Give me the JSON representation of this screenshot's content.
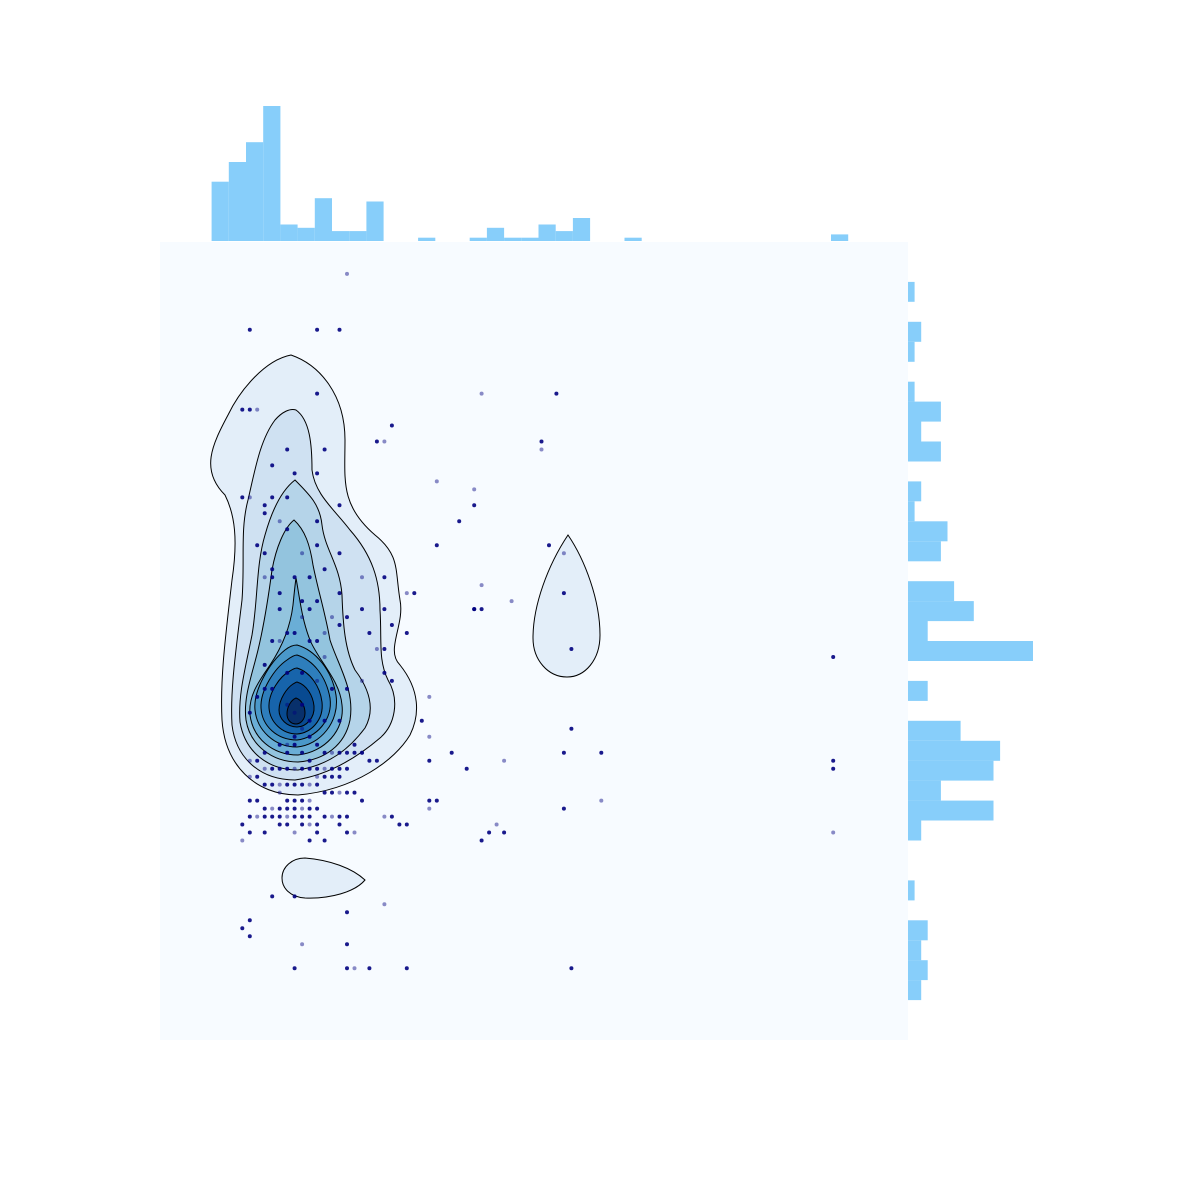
{
  "chart_data": {
    "type": "scatter",
    "subtype": "joint-kde-with-marginal-histograms",
    "title": "",
    "xlabel": "",
    "ylabel": "",
    "axes_visible": false,
    "grid": false,
    "colors": {
      "background": "#f7fbff",
      "marginal_bars": "#87cefa",
      "points": "#000080",
      "contour_line": "#000000",
      "kde_levels": [
        "#e3eef9",
        "#cfe1f2",
        "#b5d4e9",
        "#93c4de",
        "#6aaed6",
        "#4a98c9",
        "#2e7ebc",
        "#1764ab",
        "#084a91",
        "#08306b"
      ]
    },
    "xlim": [
      0,
      100
    ],
    "ylim": [
      0,
      100
    ],
    "points": [
      [
        25,
        96
      ],
      [
        12,
        89
      ],
      [
        21,
        89
      ],
      [
        24,
        89
      ],
      [
        43,
        81
      ],
      [
        53,
        81
      ],
      [
        11,
        79
      ],
      [
        12,
        79
      ],
      [
        13,
        79
      ],
      [
        21,
        81
      ],
      [
        31,
        77
      ],
      [
        29,
        75
      ],
      [
        30,
        75
      ],
      [
        17,
        74
      ],
      [
        22,
        74
      ],
      [
        51,
        75
      ],
      [
        51,
        74
      ],
      [
        15,
        72
      ],
      [
        18,
        71
      ],
      [
        21,
        71
      ],
      [
        37,
        70
      ],
      [
        15,
        68
      ],
      [
        17,
        68
      ],
      [
        11,
        68
      ],
      [
        12,
        68
      ],
      [
        14,
        67
      ],
      [
        14,
        66
      ],
      [
        24,
        67
      ],
      [
        42,
        69
      ],
      [
        42,
        67
      ],
      [
        40,
        65
      ],
      [
        21,
        65
      ],
      [
        16,
        65
      ],
      [
        17,
        64
      ],
      [
        21,
        62
      ],
      [
        37,
        62
      ],
      [
        54,
        61
      ],
      [
        52,
        62
      ],
      [
        13,
        62
      ],
      [
        14,
        61
      ],
      [
        19,
        61
      ],
      [
        24,
        61
      ],
      [
        22,
        59
      ],
      [
        15,
        59
      ],
      [
        14,
        58
      ],
      [
        15,
        58
      ],
      [
        18,
        58
      ],
      [
        20,
        58
      ],
      [
        27,
        58
      ],
      [
        30,
        58
      ],
      [
        16,
        56
      ],
      [
        24,
        56
      ],
      [
        33,
        56
      ],
      [
        34,
        56
      ],
      [
        19,
        55
      ],
      [
        21,
        55
      ],
      [
        43,
        57
      ],
      [
        54,
        56
      ],
      [
        16,
        54
      ],
      [
        20,
        54
      ],
      [
        23,
        53
      ],
      [
        27,
        54
      ],
      [
        30,
        54
      ],
      [
        42,
        54
      ],
      [
        47,
        55
      ],
      [
        31,
        52
      ],
      [
        24,
        52
      ],
      [
        25,
        53
      ],
      [
        19,
        53
      ],
      [
        17,
        51
      ],
      [
        18,
        51
      ],
      [
        15,
        50
      ],
      [
        16,
        50
      ],
      [
        20,
        50
      ],
      [
        21,
        50
      ],
      [
        28,
        51
      ],
      [
        22,
        51
      ],
      [
        33,
        51
      ],
      [
        42,
        54
      ],
      [
        43,
        54
      ],
      [
        29,
        49
      ],
      [
        30,
        49
      ],
      [
        55,
        49
      ],
      [
        90,
        48
      ],
      [
        22,
        48
      ],
      [
        14,
        47
      ],
      [
        17,
        46
      ],
      [
        19,
        46
      ],
      [
        21,
        45
      ],
      [
        14,
        44
      ],
      [
        15,
        44
      ],
      [
        13,
        43
      ],
      [
        17,
        42
      ],
      [
        19,
        42
      ],
      [
        23,
        44
      ],
      [
        25,
        44
      ],
      [
        27,
        45
      ],
      [
        30,
        46
      ],
      [
        31,
        45
      ],
      [
        12,
        41
      ],
      [
        18,
        41
      ],
      [
        20,
        40
      ],
      [
        22,
        40
      ],
      [
        24,
        40
      ],
      [
        36,
        43
      ],
      [
        26,
        37
      ],
      [
        27,
        36
      ],
      [
        18,
        38
      ],
      [
        19,
        39
      ],
      [
        20,
        38
      ],
      [
        21,
        37
      ],
      [
        22,
        36
      ],
      [
        23,
        36
      ],
      [
        24,
        36
      ],
      [
        25,
        36
      ],
      [
        26,
        36
      ],
      [
        27,
        36
      ],
      [
        28,
        35
      ],
      [
        29,
        35
      ],
      [
        17,
        36
      ],
      [
        14,
        34
      ],
      [
        15,
        34
      ],
      [
        16,
        34
      ],
      [
        17,
        34
      ],
      [
        18,
        34
      ],
      [
        19,
        34
      ],
      [
        20,
        34
      ],
      [
        21,
        34
      ],
      [
        22,
        34
      ],
      [
        23,
        34
      ],
      [
        24,
        34
      ],
      [
        25,
        34
      ],
      [
        12,
        35
      ],
      [
        13,
        35
      ],
      [
        14,
        36
      ],
      [
        16,
        37
      ],
      [
        17,
        37
      ],
      [
        18,
        37
      ],
      [
        19,
        36
      ],
      [
        20,
        35
      ],
      [
        21,
        33
      ],
      [
        22,
        33
      ],
      [
        23,
        33
      ],
      [
        24,
        33
      ],
      [
        12,
        33
      ],
      [
        13,
        33
      ],
      [
        14,
        32
      ],
      [
        15,
        32
      ],
      [
        16,
        32
      ],
      [
        17,
        32
      ],
      [
        18,
        32
      ],
      [
        19,
        32
      ],
      [
        20,
        32
      ],
      [
        21,
        32
      ],
      [
        22,
        31
      ],
      [
        23,
        31
      ],
      [
        24,
        31
      ],
      [
        25,
        31
      ],
      [
        26,
        31
      ],
      [
        27,
        30
      ],
      [
        16,
        31
      ],
      [
        17,
        30
      ],
      [
        18,
        30
      ],
      [
        19,
        30
      ],
      [
        20,
        30
      ],
      [
        12,
        30
      ],
      [
        13,
        30
      ],
      [
        14,
        29
      ],
      [
        15,
        29
      ],
      [
        16,
        29
      ],
      [
        17,
        29
      ],
      [
        18,
        29
      ],
      [
        19,
        29
      ],
      [
        20,
        29
      ],
      [
        21,
        29
      ],
      [
        22,
        28
      ],
      [
        23,
        28
      ],
      [
        24,
        28
      ],
      [
        25,
        28
      ],
      [
        12,
        28
      ],
      [
        13,
        28
      ],
      [
        16,
        27
      ],
      [
        17,
        27
      ],
      [
        19,
        27
      ],
      [
        20,
        27
      ],
      [
        21,
        27
      ],
      [
        24,
        27
      ],
      [
        25,
        26
      ],
      [
        26,
        26
      ],
      [
        11,
        27
      ],
      [
        12,
        26
      ],
      [
        14,
        26
      ],
      [
        18,
        26
      ],
      [
        20,
        25
      ],
      [
        21,
        26
      ],
      [
        22,
        25
      ],
      [
        11,
        25
      ],
      [
        14,
        28
      ],
      [
        15,
        28
      ],
      [
        16,
        28
      ],
      [
        17,
        28
      ],
      [
        18,
        28
      ],
      [
        19,
        28
      ],
      [
        20,
        28
      ],
      [
        30,
        28
      ],
      [
        31,
        28
      ],
      [
        32,
        27
      ],
      [
        33,
        27
      ],
      [
        36,
        29
      ],
      [
        36,
        30
      ],
      [
        37,
        30
      ],
      [
        36,
        35
      ],
      [
        36,
        38
      ],
      [
        35,
        40
      ],
      [
        39,
        36
      ],
      [
        41,
        34
      ],
      [
        46,
        35
      ],
      [
        54,
        36
      ],
      [
        55,
        39
      ],
      [
        54,
        29
      ],
      [
        59,
        30
      ],
      [
        59,
        36
      ],
      [
        90,
        34
      ],
      [
        90,
        35
      ],
      [
        45,
        27
      ],
      [
        43,
        25
      ],
      [
        44,
        26
      ],
      [
        46,
        26
      ],
      [
        90,
        26
      ],
      [
        15,
        18
      ],
      [
        18,
        18
      ],
      [
        25,
        16
      ],
      [
        30,
        17
      ],
      [
        11,
        14
      ],
      [
        12,
        15
      ],
      [
        12,
        13
      ],
      [
        19,
        12
      ],
      [
        25,
        12
      ],
      [
        18,
        9
      ],
      [
        25,
        9
      ],
      [
        26,
        9
      ],
      [
        28,
        9
      ],
      [
        33,
        9
      ],
      [
        55,
        9
      ]
    ],
    "marginal_x": {
      "bins": [
        0,
        2.3,
        4.6,
        6.9,
        9.2,
        11.5,
        13.8,
        16.1,
        18.4,
        20.7,
        23.0,
        25.3,
        27.6,
        29.9,
        32.2,
        34.5,
        36.8,
        39.1,
        41.4,
        43.7,
        46.0,
        48.3,
        50.6,
        52.9,
        55.2,
        57.5,
        59.8,
        62.1,
        64.4,
        66.7,
        69.0,
        71.3,
        73.6,
        75.9,
        78.2,
        80.5,
        82.8,
        85.1,
        87.4,
        89.7
      ],
      "counts": [
        0,
        0,
        0,
        18,
        24,
        30,
        41,
        5,
        4,
        13,
        3,
        3,
        12,
        0,
        0,
        1,
        0,
        0,
        1,
        4,
        1,
        1,
        5,
        3,
        7,
        0,
        0,
        1,
        0,
        0,
        0,
        0,
        0,
        0,
        0,
        0,
        0,
        0,
        0,
        2
      ]
    },
    "marginal_y": {
      "bins": [
        100,
        97.5,
        95,
        92.5,
        90,
        87.5,
        85,
        82.5,
        80,
        77.5,
        75,
        72.5,
        70,
        67.5,
        65,
        62.5,
        60,
        57.5,
        55,
        52.5,
        50,
        47.5,
        45,
        42.5,
        40,
        37.5,
        35,
        32.5,
        30,
        27.5,
        25,
        22.5,
        20,
        17.5,
        15,
        12.5,
        10,
        7.5
      ],
      "counts": [
        0,
        0,
        1,
        0,
        2,
        1,
        0,
        1,
        5,
        2,
        5,
        0,
        2,
        1,
        6,
        5,
        0,
        7,
        10,
        3,
        19,
        0,
        3,
        0,
        8,
        14,
        13,
        5,
        13,
        2,
        0,
        0,
        1,
        0,
        3,
        2,
        3,
        2
      ]
    }
  }
}
